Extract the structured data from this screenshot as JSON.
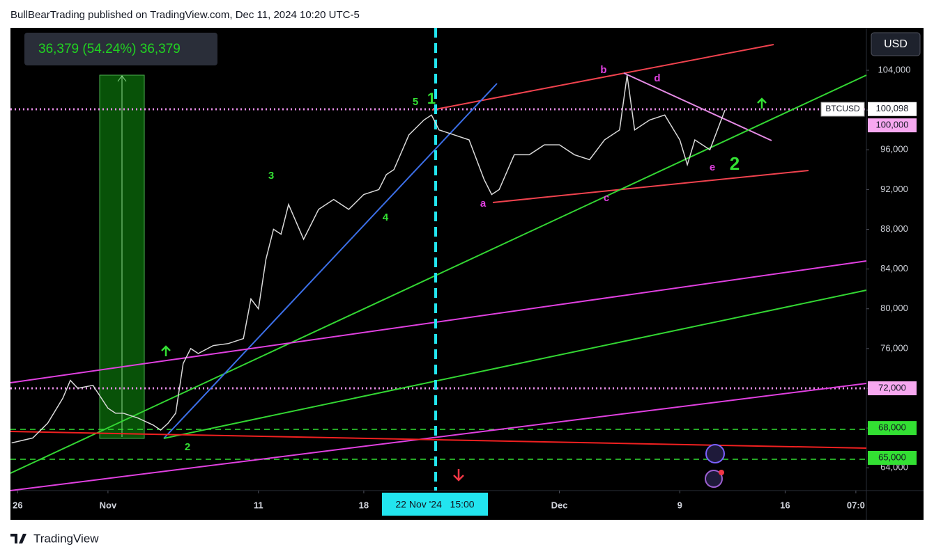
{
  "chart_data": {
    "type": "line",
    "title": "BullBearTrading published on TradingView.com, Dec 11, 2024 10:20 UTC-5",
    "measure_label": "36,379 (54.24%) 36,379",
    "currency": "USD",
    "symbol": "BTCUSD",
    "crosshair_label": "22 Nov '24   15:00",
    "footer": "TradingView",
    "color": "#d9d9d9",
    "x": [
      -6.4,
      -5,
      -4,
      -3,
      -2.5,
      -2,
      -1,
      0,
      0.5,
      1,
      2,
      3,
      3.5,
      4,
      4.5,
      5,
      5.5,
      6,
      7,
      8,
      9,
      9.5,
      10,
      10.5,
      11,
      11.5,
      12,
      13,
      14,
      15,
      16,
      17,
      18,
      18.5,
      19,
      20,
      21,
      21.5,
      22,
      23,
      24,
      25,
      25.5,
      26,
      27,
      28,
      29,
      30,
      31,
      32,
      33,
      34,
      34.5,
      35,
      36,
      37,
      38,
      38.5,
      39,
      40,
      40.5,
      41
    ],
    "values": [
      66500,
      67000,
      68500,
      71000,
      72800,
      72000,
      72300,
      70000,
      69500,
      69500,
      69000,
      68300,
      67800,
      68500,
      69500,
      74500,
      76000,
      75500,
      76300,
      76500,
      77000,
      81000,
      80000,
      85000,
      88000,
      87500,
      90500,
      87000,
      90000,
      91000,
      90000,
      91500,
      92000,
      93500,
      94000,
      97500,
      99000,
      99500,
      98000,
      97500,
      97000,
      93000,
      91500,
      92000,
      95500,
      95500,
      96500,
      96500,
      95500,
      95000,
      97000,
      98000,
      103500,
      98000,
      99000,
      99500,
      97000,
      94500,
      97000,
      96000,
      98000,
      100000
    ],
    "xlim": [
      -6.48,
      50.4
    ],
    "xticks": [
      {
        "value": -6,
        "label": "26"
      },
      {
        "value": 0,
        "label": "Nov"
      },
      {
        "value": 10,
        "label": "11"
      },
      {
        "value": 17,
        "label": "18"
      },
      {
        "value": 30,
        "label": "Dec"
      },
      {
        "value": 38,
        "label": "9"
      },
      {
        "value": 45,
        "label": "16"
      },
      {
        "value": 49.7,
        "label": "07:0"
      }
    ],
    "ylim": [
      61706,
      108271
    ],
    "yticks": [
      {
        "value": 64000,
        "label": "64,000"
      },
      {
        "value": 68000,
        "label": "68,000"
      },
      {
        "value": 72000,
        "label": "72,000"
      },
      {
        "value": 76000,
        "label": "76,000"
      },
      {
        "value": 80000,
        "label": "80,000"
      },
      {
        "value": 84000,
        "label": "84,000"
      },
      {
        "value": 88000,
        "label": "88,000"
      },
      {
        "value": 92000,
        "label": "92,000"
      },
      {
        "value": 96000,
        "label": "96,000"
      },
      {
        "value": 100000,
        "label": "100,000"
      },
      {
        "value": 104000,
        "label": "104,000"
      }
    ],
    "price_labels": [
      {
        "value": 100098,
        "label": "100,098"
      },
      {
        "value": 100000,
        "label": "100,000"
      },
      {
        "value": 72000,
        "label": "72,000"
      },
      {
        "value": 68000,
        "label": "68,000"
      },
      {
        "value": 65000,
        "label": "65,000"
      }
    ],
    "annotations": [
      "5",
      "1",
      "3",
      "4",
      "2",
      "a",
      "b",
      "c",
      "d",
      "e",
      "2"
    ]
  }
}
